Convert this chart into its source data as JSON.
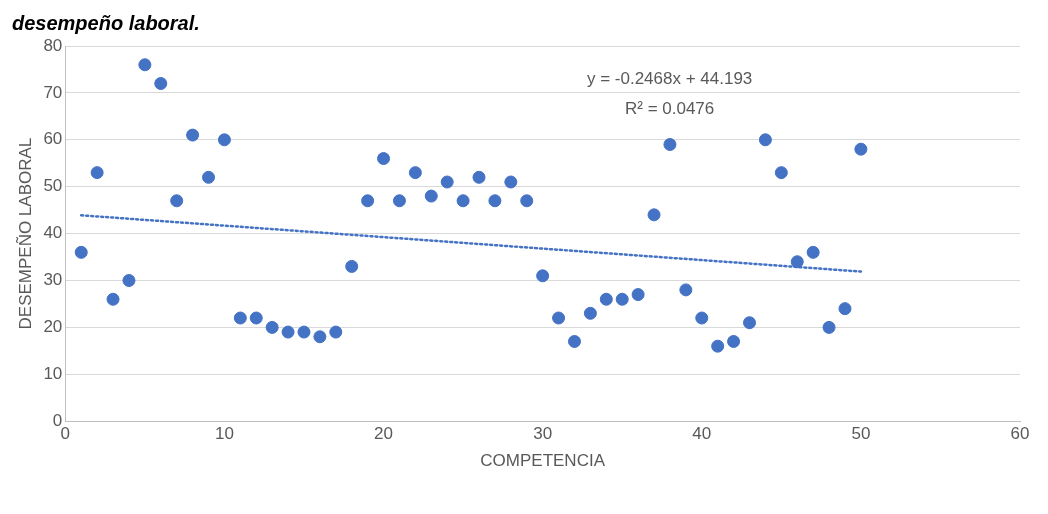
{
  "chart_data": {
    "type": "scatter",
    "title": "desempeño laboral.",
    "xlabel": "COMPETENCIA",
    "ylabel": "DESEMPEÑO LABORAL",
    "xlim": [
      0,
      60
    ],
    "xticks": [
      0,
      10,
      20,
      30,
      40,
      50,
      60
    ],
    "ylim": [
      0,
      80
    ],
    "yticks": [
      0,
      10,
      20,
      30,
      40,
      50,
      60,
      70,
      80
    ],
    "grid": "y",
    "legend": false,
    "marker": "circle",
    "series": [
      {
        "type": "scatter",
        "color": "#4472c4",
        "x": [
          1,
          2,
          3,
          4,
          5,
          6,
          7,
          8,
          9,
          10,
          11,
          12,
          13,
          14,
          15,
          16,
          17,
          18,
          19,
          20,
          21,
          22,
          23,
          24,
          25,
          26,
          27,
          28,
          29,
          30,
          31,
          32,
          33,
          34,
          35,
          36,
          37,
          38,
          39,
          40,
          41,
          42,
          43,
          44,
          45,
          46,
          47,
          48,
          49,
          50
        ],
        "values": [
          36,
          53,
          26,
          30,
          76,
          72,
          47,
          61,
          52,
          60,
          22,
          22,
          20,
          19,
          19,
          18,
          19,
          33,
          47,
          56,
          47,
          53,
          48,
          51,
          47,
          52,
          47,
          51,
          47,
          31,
          22,
          17,
          23,
          26,
          26,
          27,
          44,
          59,
          28,
          22,
          16,
          17,
          21,
          60,
          53,
          34,
          36,
          20,
          24,
          58
        ]
      },
      {
        "type": "line",
        "color": "#4472c4",
        "line_style": "dotted",
        "marker": "none",
        "x": [
          1,
          50
        ],
        "values": [
          43.9,
          31.9
        ]
      }
    ],
    "annotations": [
      "y = -0.2468x + 44.193",
      "R² = 0.0476"
    ]
  }
}
